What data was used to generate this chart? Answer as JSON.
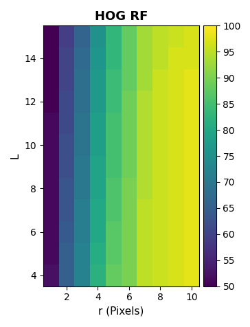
{
  "title": "HOG RF",
  "xlabel": "r (Pixels)",
  "ylabel": "L",
  "r_values": [
    1,
    2,
    3,
    4,
    5,
    6,
    7,
    8,
    9,
    10
  ],
  "L_values": [
    4,
    5,
    6,
    7,
    8,
    9,
    10,
    11,
    12,
    13,
    14,
    15
  ],
  "vmin": 50,
  "vmax": 100,
  "colorbar_ticks": [
    50,
    55,
    60,
    65,
    70,
    75,
    80,
    85,
    90,
    95,
    100
  ],
  "xticks": [
    2,
    4,
    6,
    8,
    10
  ],
  "yticks": [
    4,
    6,
    8,
    10,
    12,
    14
  ],
  "cmap": "viridis",
  "data": [
    [
      52,
      65,
      72,
      82,
      88,
      90,
      95,
      96,
      97,
      98
    ],
    [
      51,
      65,
      72,
      81,
      87,
      90,
      95,
      96,
      97,
      98
    ],
    [
      51,
      64,
      71,
      80,
      87,
      90,
      95,
      96,
      97,
      98
    ],
    [
      51,
      63,
      71,
      80,
      86,
      90,
      95,
      96,
      97,
      98
    ],
    [
      51,
      63,
      70,
      79,
      86,
      90,
      94,
      96,
      97,
      98
    ],
    [
      51,
      62,
      70,
      79,
      85,
      89,
      94,
      96,
      97,
      98
    ],
    [
      51,
      62,
      69,
      78,
      85,
      89,
      94,
      96,
      97,
      98
    ],
    [
      51,
      61,
      69,
      78,
      85,
      89,
      94,
      96,
      97,
      98
    ],
    [
      50,
      61,
      68,
      77,
      84,
      89,
      94,
      96,
      97,
      98
    ],
    [
      50,
      60,
      68,
      77,
      84,
      88,
      93,
      96,
      97,
      98
    ],
    [
      50,
      60,
      67,
      76,
      83,
      88,
      93,
      95,
      97,
      97
    ],
    [
      50,
      59,
      66,
      75,
      83,
      88,
      93,
      95,
      96,
      97
    ]
  ],
  "figsize": [
    3.64,
    4.76
  ],
  "dpi": 100,
  "title_fontsize": 13,
  "label_fontsize": 11,
  "tick_fontsize": 10,
  "colorbar_label_fontsize": 10
}
